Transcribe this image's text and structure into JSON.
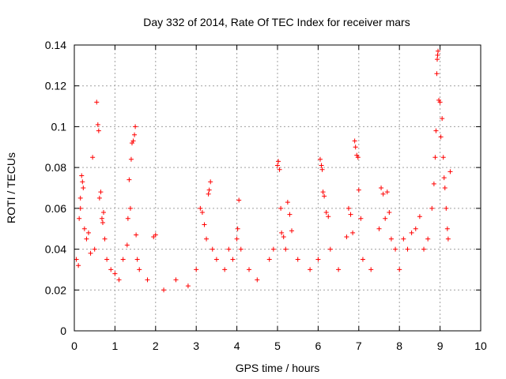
{
  "chart_data": {
    "type": "scatter",
    "title": "Day 332 of 2014, Rate Of TEC Index for receiver mars",
    "xlabel": "GPS time / hours",
    "ylabel": "ROTI / TECUs",
    "xlim": [
      0,
      10
    ],
    "ylim": [
      0,
      0.14
    ],
    "x_ticks": [
      0,
      1,
      2,
      3,
      4,
      5,
      6,
      7,
      8,
      9,
      10
    ],
    "x_tick_labels": [
      "0",
      "1",
      "2",
      "3",
      "4",
      "5",
      "6",
      "7",
      "8",
      "9",
      "10"
    ],
    "y_ticks": [
      0,
      0.02,
      0.04,
      0.06,
      0.08,
      0.1,
      0.12,
      0.14
    ],
    "y_tick_labels": [
      "0",
      "0.02",
      "0.04",
      "0.06",
      "0.08",
      "0.1",
      "0.12",
      "0.14"
    ],
    "grid": true,
    "marker": "plus",
    "marker_color": "#ff0000",
    "data_x_range": [
      0,
      9.25
    ],
    "series": [
      {
        "name": "ROTI",
        "points": [
          [
            0.05,
            0.035
          ],
          [
            0.1,
            0.032
          ],
          [
            0.12,
            0.055
          ],
          [
            0.15,
            0.06
          ],
          [
            0.15,
            0.065
          ],
          [
            0.18,
            0.076
          ],
          [
            0.2,
            0.073
          ],
          [
            0.22,
            0.07
          ],
          [
            0.25,
            0.05
          ],
          [
            0.3,
            0.045
          ],
          [
            0.35,
            0.048
          ],
          [
            0.4,
            0.038
          ],
          [
            0.45,
            0.085
          ],
          [
            0.5,
            0.04
          ],
          [
            0.55,
            0.112
          ],
          [
            0.58,
            0.101
          ],
          [
            0.6,
            0.098
          ],
          [
            0.62,
            0.065
          ],
          [
            0.65,
            0.068
          ],
          [
            0.68,
            0.055
          ],
          [
            0.7,
            0.053
          ],
          [
            0.72,
            0.058
          ],
          [
            0.75,
            0.045
          ],
          [
            0.8,
            0.035
          ],
          [
            0.9,
            0.03
          ],
          [
            1.0,
            0.028
          ],
          [
            1.1,
            0.025
          ],
          [
            1.2,
            0.035
          ],
          [
            1.3,
            0.042
          ],
          [
            1.32,
            0.055
          ],
          [
            1.35,
            0.074
          ],
          [
            1.38,
            0.06
          ],
          [
            1.4,
            0.084
          ],
          [
            1.42,
            0.092
          ],
          [
            1.45,
            0.093
          ],
          [
            1.48,
            0.096
          ],
          [
            1.5,
            0.1
          ],
          [
            1.52,
            0.047
          ],
          [
            1.55,
            0.035
          ],
          [
            1.6,
            0.03
          ],
          [
            1.8,
            0.025
          ],
          [
            1.95,
            0.046
          ],
          [
            2.0,
            0.047
          ],
          [
            2.2,
            0.02
          ],
          [
            2.5,
            0.025
          ],
          [
            2.8,
            0.022
          ],
          [
            3.0,
            0.03
          ],
          [
            3.1,
            0.06
          ],
          [
            3.15,
            0.058
          ],
          [
            3.2,
            0.052
          ],
          [
            3.25,
            0.045
          ],
          [
            3.3,
            0.067
          ],
          [
            3.32,
            0.069
          ],
          [
            3.35,
            0.073
          ],
          [
            3.4,
            0.04
          ],
          [
            3.5,
            0.035
          ],
          [
            3.7,
            0.03
          ],
          [
            3.8,
            0.04
          ],
          [
            3.9,
            0.035
          ],
          [
            4.0,
            0.045
          ],
          [
            4.02,
            0.05
          ],
          [
            4.05,
            0.064
          ],
          [
            4.1,
            0.04
          ],
          [
            4.3,
            0.03
          ],
          [
            4.5,
            0.025
          ],
          [
            4.8,
            0.035
          ],
          [
            4.9,
            0.04
          ],
          [
            5.0,
            0.081
          ],
          [
            5.02,
            0.083
          ],
          [
            5.05,
            0.079
          ],
          [
            5.08,
            0.06
          ],
          [
            5.1,
            0.048
          ],
          [
            5.15,
            0.046
          ],
          [
            5.2,
            0.04
          ],
          [
            5.25,
            0.063
          ],
          [
            5.3,
            0.057
          ],
          [
            5.35,
            0.049
          ],
          [
            5.5,
            0.035
          ],
          [
            5.8,
            0.03
          ],
          [
            6.0,
            0.035
          ],
          [
            6.05,
            0.084
          ],
          [
            6.08,
            0.081
          ],
          [
            6.1,
            0.079
          ],
          [
            6.12,
            0.068
          ],
          [
            6.15,
            0.066
          ],
          [
            6.2,
            0.058
          ],
          [
            6.25,
            0.056
          ],
          [
            6.3,
            0.04
          ],
          [
            6.5,
            0.03
          ],
          [
            6.7,
            0.046
          ],
          [
            6.75,
            0.06
          ],
          [
            6.8,
            0.057
          ],
          [
            6.85,
            0.048
          ],
          [
            6.9,
            0.093
          ],
          [
            6.92,
            0.09
          ],
          [
            6.95,
            0.086
          ],
          [
            6.98,
            0.085
          ],
          [
            7.0,
            0.069
          ],
          [
            7.05,
            0.055
          ],
          [
            7.1,
            0.035
          ],
          [
            7.3,
            0.03
          ],
          [
            7.5,
            0.05
          ],
          [
            7.55,
            0.07
          ],
          [
            7.6,
            0.067
          ],
          [
            7.65,
            0.055
          ],
          [
            7.7,
            0.068
          ],
          [
            7.75,
            0.058
          ],
          [
            7.8,
            0.045
          ],
          [
            7.9,
            0.04
          ],
          [
            8.0,
            0.03
          ],
          [
            8.1,
            0.045
          ],
          [
            8.2,
            0.04
          ],
          [
            8.3,
            0.048
          ],
          [
            8.4,
            0.05
          ],
          [
            8.5,
            0.056
          ],
          [
            8.6,
            0.04
          ],
          [
            8.7,
            0.045
          ],
          [
            8.8,
            0.06
          ],
          [
            8.85,
            0.072
          ],
          [
            8.88,
            0.085
          ],
          [
            8.9,
            0.098
          ],
          [
            8.92,
            0.126
          ],
          [
            8.93,
            0.133
          ],
          [
            8.94,
            0.135
          ],
          [
            8.95,
            0.137
          ],
          [
            8.97,
            0.113
          ],
          [
            9.0,
            0.112
          ],
          [
            9.02,
            0.095
          ],
          [
            9.05,
            0.104
          ],
          [
            9.08,
            0.085
          ],
          [
            9.1,
            0.075
          ],
          [
            9.12,
            0.07
          ],
          [
            9.15,
            0.06
          ],
          [
            9.18,
            0.05
          ],
          [
            9.2,
            0.045
          ],
          [
            9.25,
            0.078
          ]
        ]
      }
    ]
  }
}
